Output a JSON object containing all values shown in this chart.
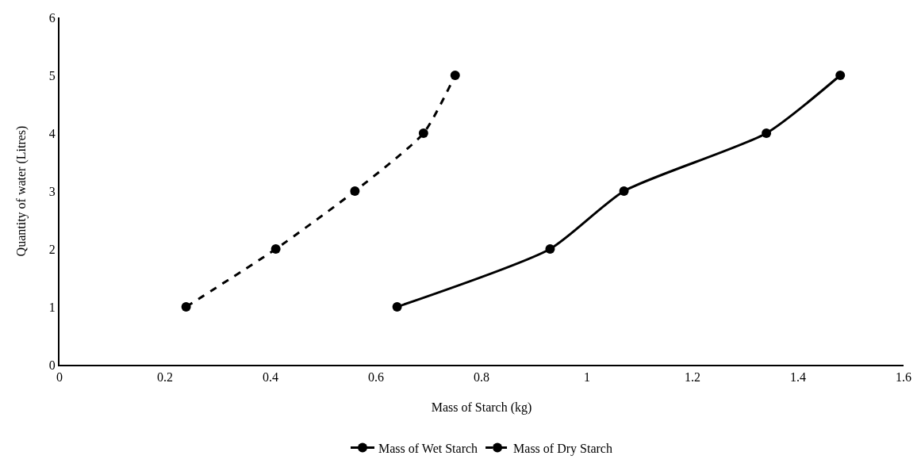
{
  "chart_data": {
    "type": "line",
    "xlabel": "Mass of Starch (kg)",
    "ylabel": "Quantity of water (Litres)",
    "xlim": [
      0,
      1.6
    ],
    "xticks": [
      0,
      0.2,
      0.4,
      0.6,
      0.8,
      1,
      1.2,
      1.4,
      1.6
    ],
    "ylim": [
      0,
      6
    ],
    "yticks": [
      0,
      1,
      2,
      3,
      4,
      5,
      6
    ],
    "grid": false,
    "legend": "bottom",
    "marker": "circle",
    "series": [
      {
        "name": "Mass of Wet Starch",
        "color": "#000000",
        "line_style": "solid",
        "x": [
          0.64,
          0.93,
          1.07,
          1.34,
          1.48
        ],
        "values": [
          1,
          2,
          3,
          4,
          5
        ]
      },
      {
        "name": "Mass of Dry Starch",
        "color": "#000000",
        "line_style": "dashed",
        "x": [
          0.24,
          0.41,
          0.56,
          0.69,
          0.75
        ],
        "values": [
          1,
          2,
          3,
          4,
          5
        ]
      }
    ]
  }
}
